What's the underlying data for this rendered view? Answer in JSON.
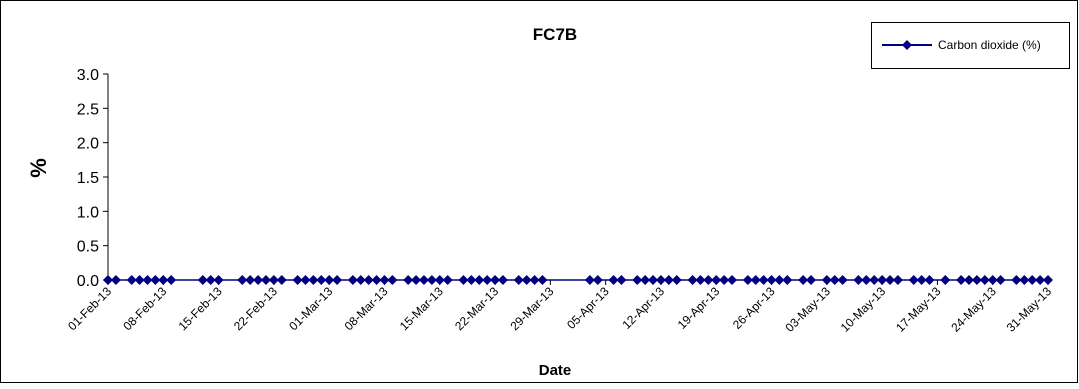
{
  "chart_data": {
    "type": "line",
    "title": "FC7B",
    "xlabel": "Date",
    "ylabel": "%",
    "ylim": [
      0,
      3.0
    ],
    "yticks": [
      "0.0",
      "0.5",
      "1.0",
      "1.5",
      "2.0",
      "2.5",
      "3.0"
    ],
    "xlim": [
      "2013-02-01",
      "2013-05-31"
    ],
    "xticks": [
      "01-Feb-13",
      "08-Feb-13",
      "15-Feb-13",
      "22-Feb-13",
      "01-Mar-13",
      "08-Mar-13",
      "15-Mar-13",
      "22-Mar-13",
      "29-Mar-13",
      "05-Apr-13",
      "12-Apr-13",
      "19-Apr-13",
      "26-Apr-13",
      "03-May-13",
      "10-May-13",
      "17-May-13",
      "24-May-13",
      "31-May-13"
    ],
    "grid": false,
    "legend": "top-right",
    "series": [
      {
        "name": "Carbon dioxide (%)",
        "color": "#000080",
        "marker": "diamond",
        "x": [
          "2013-02-01",
          "2013-02-02",
          "2013-02-04",
          "2013-02-05",
          "2013-02-06",
          "2013-02-07",
          "2013-02-08",
          "2013-02-09",
          "2013-02-13",
          "2013-02-14",
          "2013-02-15",
          "2013-02-18",
          "2013-02-19",
          "2013-02-20",
          "2013-02-21",
          "2013-02-22",
          "2013-02-23",
          "2013-02-25",
          "2013-02-26",
          "2013-02-27",
          "2013-02-28",
          "2013-03-01",
          "2013-03-02",
          "2013-03-04",
          "2013-03-05",
          "2013-03-06",
          "2013-03-07",
          "2013-03-08",
          "2013-03-09",
          "2013-03-11",
          "2013-03-12",
          "2013-03-13",
          "2013-03-14",
          "2013-03-15",
          "2013-03-16",
          "2013-03-18",
          "2013-03-19",
          "2013-03-20",
          "2013-03-21",
          "2013-03-22",
          "2013-03-23",
          "2013-03-25",
          "2013-03-26",
          "2013-03-27",
          "2013-03-28",
          "2013-04-03",
          "2013-04-04",
          "2013-04-06",
          "2013-04-07",
          "2013-04-09",
          "2013-04-10",
          "2013-04-11",
          "2013-04-12",
          "2013-04-13",
          "2013-04-14",
          "2013-04-16",
          "2013-04-17",
          "2013-04-18",
          "2013-04-19",
          "2013-04-20",
          "2013-04-21",
          "2013-04-23",
          "2013-04-24",
          "2013-04-25",
          "2013-04-26",
          "2013-04-27",
          "2013-04-28",
          "2013-04-30",
          "2013-05-01",
          "2013-05-03",
          "2013-05-04",
          "2013-05-05",
          "2013-05-07",
          "2013-05-08",
          "2013-05-09",
          "2013-05-10",
          "2013-05-11",
          "2013-05-12",
          "2013-05-14",
          "2013-05-15",
          "2013-05-16",
          "2013-05-18",
          "2013-05-20",
          "2013-05-21",
          "2013-05-22",
          "2013-05-23",
          "2013-05-24",
          "2013-05-25",
          "2013-05-27",
          "2013-05-28",
          "2013-05-29",
          "2013-05-30",
          "2013-05-31"
        ],
        "values": [
          0,
          0,
          0,
          0,
          0,
          0,
          0,
          0,
          0,
          0,
          0,
          0,
          0,
          0,
          0,
          0,
          0,
          0,
          0,
          0,
          0,
          0,
          0,
          0,
          0,
          0,
          0,
          0,
          0,
          0,
          0,
          0,
          0,
          0,
          0,
          0,
          0,
          0,
          0,
          0,
          0,
          0,
          0,
          0,
          0,
          0,
          0,
          0,
          0,
          0,
          0,
          0,
          0,
          0,
          0,
          0,
          0,
          0,
          0,
          0,
          0,
          0,
          0,
          0,
          0,
          0,
          0,
          0,
          0,
          0,
          0,
          0,
          0,
          0,
          0,
          0,
          0,
          0,
          0,
          0,
          0,
          0,
          0,
          0,
          0,
          0,
          0,
          0,
          0,
          0,
          0,
          0,
          0
        ]
      }
    ]
  }
}
